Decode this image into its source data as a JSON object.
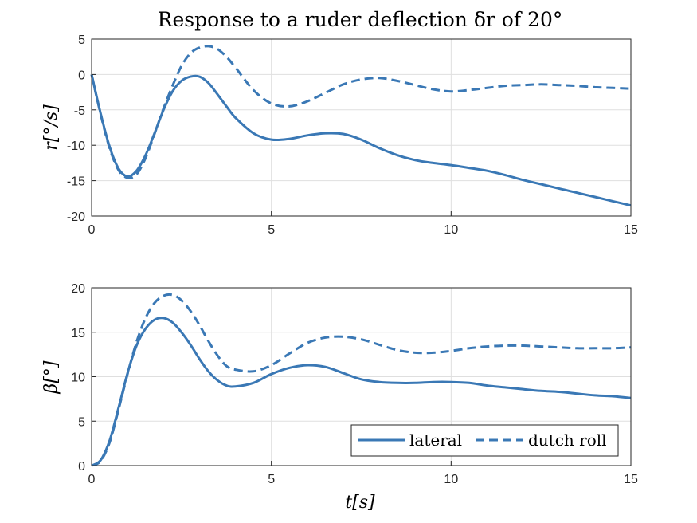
{
  "figure": {
    "title": "Response to a ruder deflection δr of 20°"
  },
  "chart_data": [
    {
      "type": "line",
      "title": "Response to a ruder deflection δr of 20°",
      "xlabel": "",
      "ylabel": "r[°/s]",
      "xlim": [
        0,
        15
      ],
      "ylim": [
        -20,
        5
      ],
      "xticks": [
        0,
        5,
        10,
        15
      ],
      "yticks": [
        -20,
        -15,
        -10,
        -5,
        0,
        5
      ],
      "grid": true,
      "series": [
        {
          "name": "lateral",
          "style": "solid",
          "color": "#3A78B5",
          "x": [
            0,
            0.25,
            0.5,
            0.75,
            1.0,
            1.25,
            1.5,
            1.75,
            2.0,
            2.25,
            2.5,
            2.75,
            3.0,
            3.25,
            3.5,
            3.75,
            4.0,
            4.5,
            5.0,
            5.5,
            6.0,
            6.5,
            7.0,
            7.5,
            8.0,
            8.5,
            9.0,
            9.5,
            10.0,
            10.5,
            11.0,
            11.5,
            12.0,
            12.5,
            13.0,
            13.5,
            14.0,
            14.5,
            15.0
          ],
          "y": [
            0,
            -5.5,
            -10.2,
            -13.3,
            -14.4,
            -13.6,
            -11.4,
            -8.3,
            -5.0,
            -2.4,
            -0.9,
            -0.3,
            -0.3,
            -1.2,
            -2.8,
            -4.5,
            -6.1,
            -8.3,
            -9.2,
            -9.1,
            -8.6,
            -8.3,
            -8.4,
            -9.2,
            -10.4,
            -11.4,
            -12.1,
            -12.5,
            -12.8,
            -13.2,
            -13.6,
            -14.2,
            -14.9,
            -15.5,
            -16.1,
            -16.7,
            -17.3,
            -17.9,
            -18.5
          ]
        },
        {
          "name": "dutch roll",
          "style": "dashed",
          "color": "#3A78B5",
          "x": [
            0,
            0.25,
            0.5,
            0.75,
            1.0,
            1.25,
            1.5,
            1.75,
            2.0,
            2.25,
            2.5,
            2.75,
            3.0,
            3.25,
            3.5,
            3.75,
            4.0,
            4.5,
            5.0,
            5.5,
            6.0,
            6.5,
            7.0,
            7.5,
            8.0,
            8.5,
            9.0,
            9.5,
            10.0,
            10.5,
            11.0,
            11.5,
            12.0,
            12.5,
            13.0,
            13.5,
            14.0,
            14.5,
            15.0
          ],
          "y": [
            0,
            -5.6,
            -10.4,
            -13.5,
            -14.6,
            -14.1,
            -11.8,
            -8.4,
            -4.8,
            -1.6,
            1.2,
            3.0,
            3.8,
            4.0,
            3.6,
            2.5,
            1.0,
            -2.2,
            -4.1,
            -4.5,
            -3.8,
            -2.6,
            -1.4,
            -0.7,
            -0.5,
            -0.9,
            -1.5,
            -2.1,
            -2.4,
            -2.2,
            -1.9,
            -1.6,
            -1.5,
            -1.4,
            -1.5,
            -1.6,
            -1.8,
            -1.9,
            -2.0
          ]
        }
      ]
    },
    {
      "type": "line",
      "title": "",
      "xlabel": "t[s]",
      "ylabel": "β[°]",
      "xlim": [
        0,
        15
      ],
      "ylim": [
        0,
        20
      ],
      "xticks": [
        0,
        5,
        10,
        15
      ],
      "yticks": [
        0,
        5,
        10,
        15,
        20
      ],
      "grid": true,
      "legend": {
        "placement": "bottom-right",
        "entries": [
          "lateral",
          "dutch roll"
        ]
      },
      "series": [
        {
          "name": "lateral",
          "style": "solid",
          "color": "#3A78B5",
          "x": [
            0,
            0.25,
            0.5,
            0.75,
            1.0,
            1.25,
            1.5,
            1.75,
            2.0,
            2.25,
            2.5,
            2.75,
            3.0,
            3.25,
            3.5,
            3.75,
            4.0,
            4.5,
            5.0,
            5.5,
            6.0,
            6.5,
            7.0,
            7.5,
            8.0,
            8.5,
            9.0,
            9.5,
            10.0,
            10.5,
            11.0,
            11.5,
            12.0,
            12.5,
            13.0,
            13.5,
            14.0,
            14.5,
            15.0
          ],
          "y": [
            0,
            0.6,
            2.8,
            6.5,
            10.4,
            13.5,
            15.4,
            16.4,
            16.6,
            16.1,
            15.0,
            13.6,
            12.0,
            10.6,
            9.6,
            9.0,
            8.9,
            9.3,
            10.3,
            11.0,
            11.3,
            11.1,
            10.4,
            9.7,
            9.4,
            9.3,
            9.3,
            9.4,
            9.4,
            9.3,
            9.0,
            8.8,
            8.6,
            8.4,
            8.3,
            8.1,
            7.9,
            7.8,
            7.6
          ]
        },
        {
          "name": "dutch roll",
          "style": "dashed",
          "color": "#3A78B5",
          "x": [
            0,
            0.25,
            0.5,
            0.75,
            1.0,
            1.25,
            1.5,
            1.75,
            2.0,
            2.25,
            2.5,
            2.75,
            3.0,
            3.25,
            3.5,
            3.75,
            4.0,
            4.5,
            5.0,
            5.5,
            6.0,
            6.5,
            7.0,
            7.5,
            8.0,
            8.5,
            9.0,
            9.5,
            10.0,
            10.5,
            11.0,
            11.5,
            12.0,
            12.5,
            13.0,
            13.5,
            14.0,
            14.5,
            15.0
          ],
          "y": [
            0,
            0.5,
            2.6,
            6.3,
            10.3,
            13.9,
            16.6,
            18.3,
            19.1,
            19.2,
            18.6,
            17.4,
            15.8,
            14.0,
            12.4,
            11.2,
            10.8,
            10.6,
            11.3,
            12.6,
            13.8,
            14.4,
            14.5,
            14.2,
            13.6,
            13.0,
            12.7,
            12.7,
            12.9,
            13.2,
            13.4,
            13.5,
            13.5,
            13.4,
            13.3,
            13.2,
            13.2,
            13.2,
            13.3
          ]
        }
      ]
    }
  ]
}
